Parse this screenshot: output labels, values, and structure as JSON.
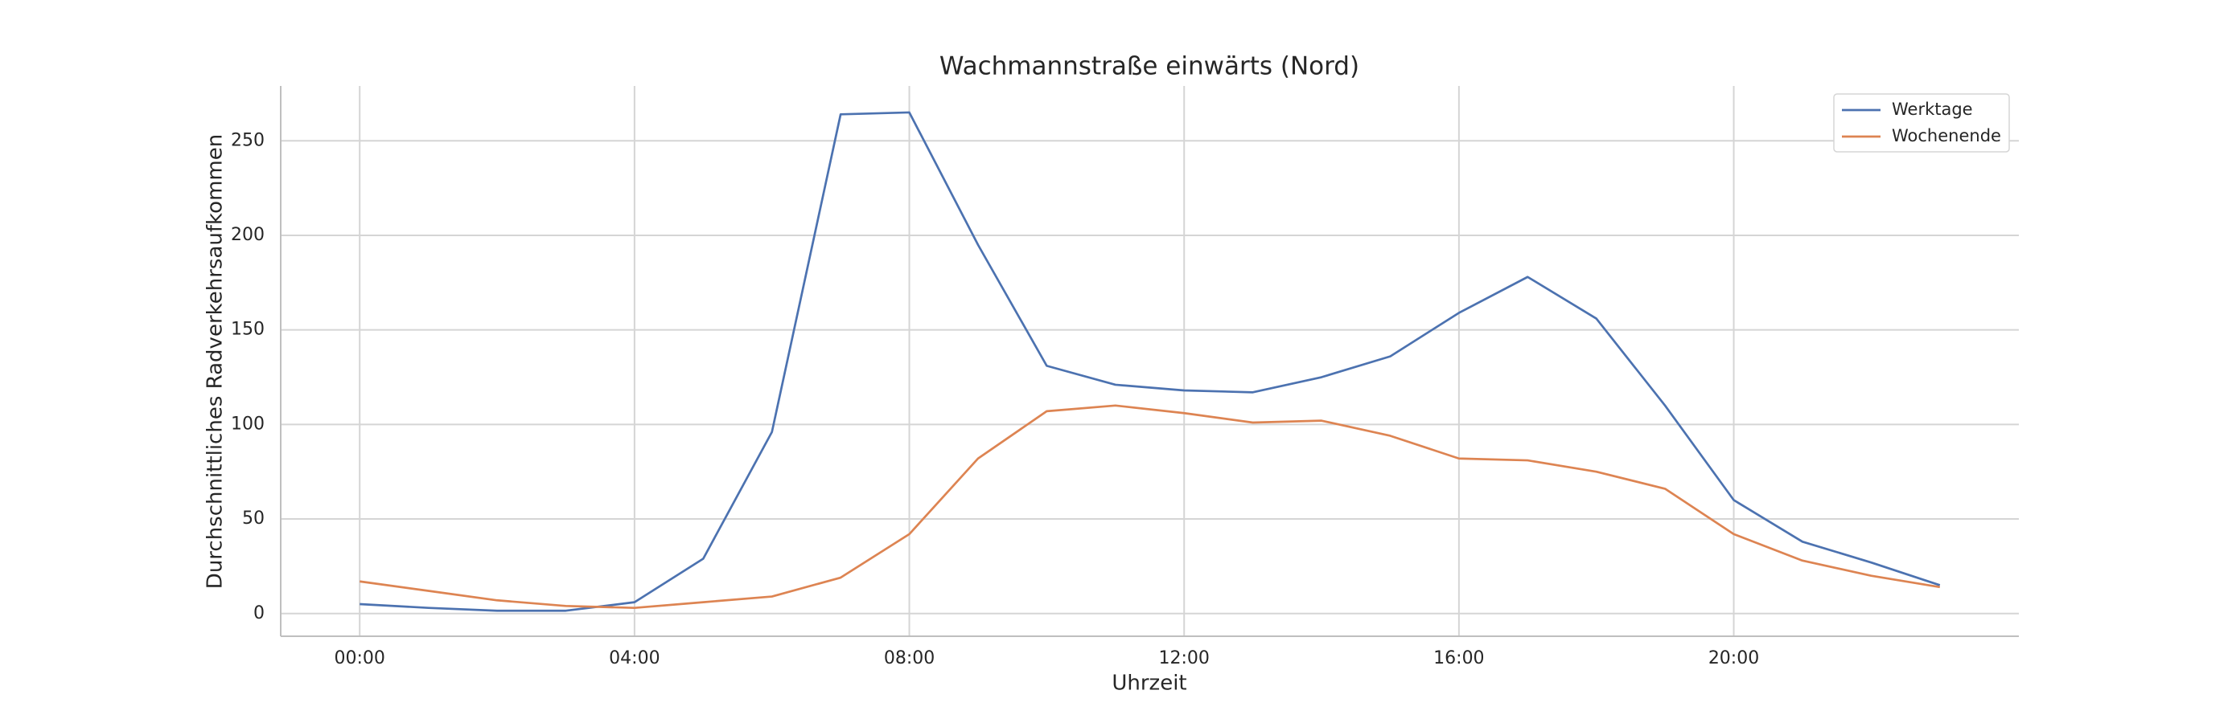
{
  "chart_data": {
    "type": "line",
    "title": "Wachmannstraße einwärts (Nord)",
    "x_label": "Uhrzeit",
    "y_label": "Durchschnittliches Radverkehrsaufkommen",
    "x": [
      0,
      1,
      2,
      3,
      4,
      5,
      6,
      7,
      8,
      9,
      10,
      11,
      12,
      13,
      14,
      15,
      16,
      17,
      18,
      19,
      20,
      21,
      22,
      23
    ],
    "series": [
      {
        "name": "Werktage",
        "color": "#4c72b0",
        "values": [
          5,
          3,
          1.5,
          1.5,
          6,
          29,
          96,
          264,
          265,
          195,
          131,
          121,
          118,
          117,
          125,
          136,
          159,
          178,
          156,
          110,
          60,
          38,
          27,
          15
        ]
      },
      {
        "name": "Wochenende",
        "color": "#dd8452",
        "values": [
          17,
          12,
          7,
          4,
          3,
          6,
          9,
          19,
          42,
          82,
          107,
          110,
          106,
          101,
          102,
          94,
          82,
          81,
          75,
          66,
          42,
          28,
          20,
          14
        ]
      }
    ],
    "xlim": [
      -1.15,
      24.15
    ],
    "xticks": [
      {
        "value": 0,
        "label": "00:00"
      },
      {
        "value": 4,
        "label": "04:00"
      },
      {
        "value": 8,
        "label": "08:00"
      },
      {
        "value": 12,
        "label": "12:00"
      },
      {
        "value": 16,
        "label": "16:00"
      },
      {
        "value": 20,
        "label": "20:00"
      }
    ],
    "ylim": [
      -12,
      279
    ],
    "yticks": [
      0,
      50,
      100,
      150,
      200,
      250
    ],
    "grid": true,
    "legend": "upper-right"
  }
}
